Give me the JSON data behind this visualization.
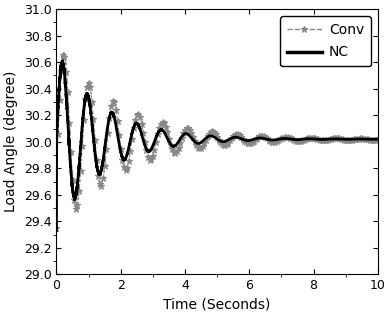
{
  "title": "",
  "xlabel": "Time (Seconds)",
  "ylabel": "Load Angle (degree)",
  "xlim": [
    0,
    10
  ],
  "ylim": [
    29,
    31
  ],
  "yticks": [
    29,
    29.2,
    29.4,
    29.6,
    29.8,
    30,
    30.2,
    30.4,
    30.6,
    30.8,
    31
  ],
  "xticks": [
    0,
    2,
    4,
    6,
    8,
    10
  ],
  "steady_state": 30.02,
  "conv_color": "#888888",
  "nc_color": "#000000",
  "legend_labels": [
    "Conv",
    "NC"
  ],
  "t_end": 10.0,
  "dt": 0.002,
  "freq": 1.3,
  "conv_decay": 0.52,
  "nc_decay": 0.68,
  "conv_amp": 0.72,
  "nc_amp": 0.65,
  "conv_phase": -0.35,
  "nc_phase": 0.0,
  "noise_seed": 7,
  "figsize": [
    3.9,
    3.16
  ],
  "dpi": 100
}
